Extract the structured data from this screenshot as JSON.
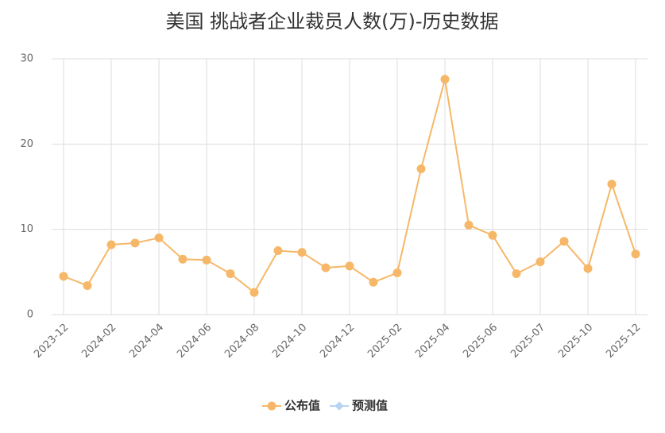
{
  "chart_data": {
    "type": "line",
    "title": "美国 挑战者企业裁员人数(万)-历史数据",
    "categories": [
      "2023-12",
      null,
      "2024-02",
      null,
      "2024-04",
      null,
      "2024-06",
      null,
      "2024-08",
      null,
      "2024-10",
      null,
      "2024-12",
      null,
      "2025-02",
      null,
      "2025-04",
      null,
      "2025-06",
      null,
      "2025-07",
      null,
      "2025-10",
      null,
      "2025-12"
    ],
    "series": [
      {
        "name": "公布值",
        "color": "#f6b868",
        "values": [
          4.5,
          3.4,
          8.2,
          8.4,
          9.0,
          6.5,
          6.4,
          4.8,
          2.6,
          7.5,
          7.3,
          5.5,
          5.7,
          3.8,
          4.9,
          17.1,
          27.6,
          10.5,
          9.3,
          4.8,
          6.2,
          8.6,
          5.4,
          15.3,
          7.1
        ]
      },
      {
        "name": "预测值",
        "color": "#b6d4f0",
        "values": [
          null,
          null,
          null,
          null,
          null,
          null,
          null,
          null,
          null,
          null,
          null,
          null,
          null,
          null,
          null,
          null,
          null,
          null,
          null,
          null,
          null,
          null,
          null,
          null,
          null
        ]
      }
    ],
    "ylim": [
      0,
      30
    ],
    "yticks": [
      0,
      10,
      20,
      30
    ],
    "grid": true
  }
}
